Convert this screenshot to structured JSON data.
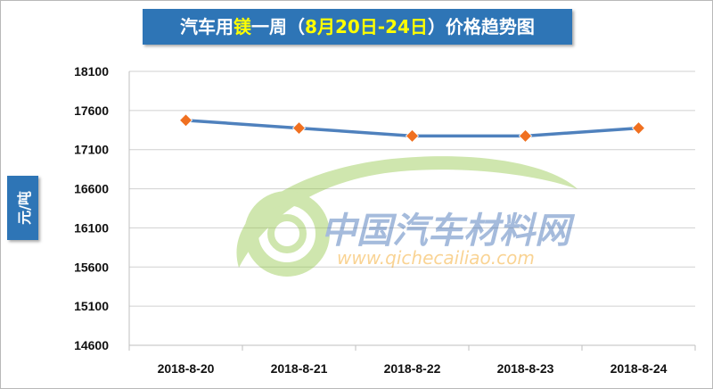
{
  "chart_data": {
    "type": "line",
    "title_parts": [
      {
        "text": "汽车用",
        "highlight": false
      },
      {
        "text": "镁",
        "highlight": true
      },
      {
        "text": "一周（",
        "highlight": false
      },
      {
        "text": "8月20日-24日",
        "highlight": true
      },
      {
        "text": "）价格趋势图",
        "highlight": false
      }
    ],
    "ylabel": "元/吨",
    "categories": [
      "2018-8-20",
      "2018-8-21",
      "2018-8-22",
      "2018-8-23",
      "2018-8-24"
    ],
    "series": [
      {
        "values": [
          17475,
          17375,
          17275,
          17275,
          17375
        ],
        "line_color": "#4f81bd",
        "marker_color": "#f07020",
        "marker": "diamond"
      }
    ],
    "ylim": [
      14600,
      18100
    ],
    "yticks": [
      14600,
      15100,
      15600,
      16100,
      16600,
      17100,
      17600,
      18100
    ],
    "grid": true
  },
  "watermark": {
    "name": "中国汽车材料网",
    "url": "www.qichecailiao.com",
    "colors": {
      "green": "#8ec63f",
      "blue": "#2b5fad",
      "orange": "#f39800"
    }
  }
}
